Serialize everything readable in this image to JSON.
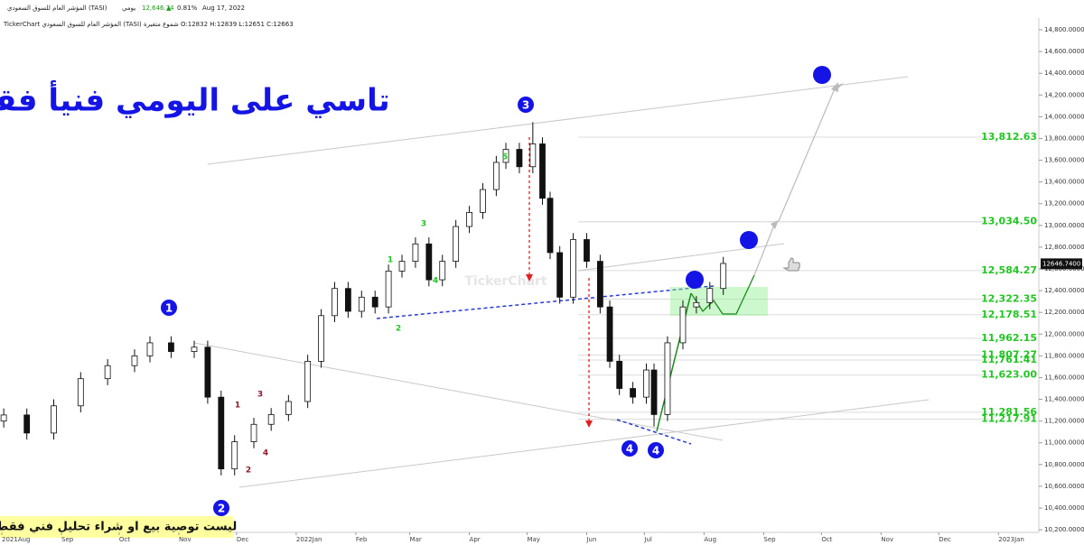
{
  "header": {
    "instrument": "المؤشر العام للسوق السعودي (TASI)",
    "interval": "يومي",
    "price": "12,646.74",
    "direction": "▲",
    "change": "0.81%",
    "date": "Aug 17, 2022",
    "info_line": "TickerChart المؤشر العام للسوق السعودي (TASI) شموع متغيرة O:12832 H:12839 L:12651 C:12663"
  },
  "chart_data": {
    "type": "candlestick",
    "title": "تاسي على اليومي فنيأ فقط",
    "watermark": "TickerChart",
    "x": [
      1,
      13,
      27,
      41,
      55,
      69,
      77,
      88,
      100,
      107,
      114,
      121,
      131,
      140,
      149,
      159,
      166,
      173,
      180,
      187,
      194,
      201,
      208,
      215,
      222,
      229,
      236,
      243,
      250,
      257,
      262,
      269,
      276,
      281,
      285,
      290,
      297,
      304,
      311,
      316,
      321,
      328,
      335,
      339,
      346,
      354,
      361,
      368,
      375
    ],
    "open": [
      11200,
      11256,
      11090,
      11340,
      11590,
      11710,
      11800,
      11920,
      11840,
      11880,
      11420,
      10760,
      11010,
      11170,
      11260,
      11380,
      11750,
      12170,
      12420,
      12210,
      12340,
      12250,
      12580,
      12670,
      12830,
      12500,
      12670,
      12990,
      13120,
      13330,
      13580,
      13700,
      13540,
      13750,
      13250,
      12750,
      12340,
      12870,
      12670,
      12250,
      11750,
      11500,
      11420,
      11670,
      11260,
      11920,
      12250,
      12290,
      12420
    ],
    "high": [
      11316,
      11316,
      11400,
      11650,
      11770,
      11860,
      11980,
      11980,
      11940,
      11940,
      11480,
      11070,
      11230,
      11320,
      11440,
      11810,
      12230,
      12480,
      12480,
      12400,
      12400,
      12640,
      12730,
      12890,
      12890,
      12730,
      13050,
      13180,
      13390,
      13640,
      13760,
      13760,
      13950,
      13810,
      13310,
      12810,
      12930,
      12930,
      12730,
      12310,
      11810,
      11560,
      11730,
      11730,
      11980,
      12310,
      12350,
      12480,
      12710
    ],
    "low": [
      11140,
      11030,
      11030,
      11280,
      11530,
      11650,
      11740,
      11780,
      11780,
      11360,
      10700,
      10700,
      10950,
      11110,
      11200,
      11320,
      11690,
      12110,
      12150,
      12150,
      12190,
      12190,
      12520,
      12610,
      12440,
      12440,
      12610,
      12930,
      13060,
      13270,
      13520,
      13480,
      13480,
      13190,
      12690,
      12280,
      12280,
      12610,
      12190,
      11690,
      11440,
      11360,
      11360,
      11150,
      11200,
      11860,
      12190,
      12230,
      12360
    ],
    "close": [
      11256,
      11090,
      11340,
      11590,
      11710,
      11800,
      11920,
      11840,
      11880,
      11420,
      10760,
      11010,
      11170,
      11260,
      11380,
      11750,
      12170,
      12420,
      12210,
      12340,
      12250,
      12580,
      12670,
      12830,
      12500,
      12670,
      12990,
      13120,
      13330,
      13580,
      13700,
      13540,
      13750,
      13250,
      12750,
      12340,
      12870,
      12670,
      12250,
      11750,
      11500,
      11420,
      11670,
      11260,
      11920,
      12250,
      12290,
      12420,
      12650
    ],
    "up_color": "#ffffff",
    "down_color": "#111111",
    "xlim": [
      0,
      539
    ],
    "xticks": [
      {
        "value": 0,
        "label": "2021Aug"
      },
      {
        "value": 31,
        "label": "Sep"
      },
      {
        "value": 61,
        "label": "Oct"
      },
      {
        "value": 92,
        "label": "Nov"
      },
      {
        "value": 122,
        "label": "Dec"
      },
      {
        "value": 153,
        "label": "2022Jan"
      },
      {
        "value": 184,
        "label": "Feb"
      },
      {
        "value": 212,
        "label": "Mar"
      },
      {
        "value": 243,
        "label": "Apr"
      },
      {
        "value": 273,
        "label": "May"
      },
      {
        "value": 304,
        "label": "Jun"
      },
      {
        "value": 334,
        "label": "Jul"
      },
      {
        "value": 365,
        "label": "Aug"
      },
      {
        "value": 396,
        "label": "Sep"
      },
      {
        "value": 426,
        "label": "Oct"
      },
      {
        "value": 457,
        "label": "Nov"
      },
      {
        "value": 487,
        "label": "Dec"
      },
      {
        "value": 518,
        "label": "2023Jan"
      }
    ],
    "ylim": [
      10176,
      14908
    ],
    "yticks": [
      {
        "value": 10200,
        "label": "10,200.0000"
      },
      {
        "value": 10400,
        "label": "10,400.0000"
      },
      {
        "value": 10600,
        "label": "10,600.0000"
      },
      {
        "value": 10800,
        "label": "10,800.0000"
      },
      {
        "value": 11000,
        "label": "11,000.0000"
      },
      {
        "value": 11200,
        "label": "11,200.0000"
      },
      {
        "value": 11400,
        "label": "11,400.0000"
      },
      {
        "value": 11600,
        "label": "11,600.0000"
      },
      {
        "value": 11800,
        "label": "11,800.0000"
      },
      {
        "value": 12000,
        "label": "12,000.0000"
      },
      {
        "value": 12200,
        "label": "12,200.0000"
      },
      {
        "value": 12400,
        "label": "12,400.0000"
      },
      {
        "value": 12600,
        "label": "12,600.0000"
      },
      {
        "value": 12800,
        "label": "12,800.0000"
      },
      {
        "value": 13000,
        "label": "13,000.0000"
      },
      {
        "value": 13200,
        "label": "13,200.0000"
      },
      {
        "value": 13400,
        "label": "13,400.0000"
      },
      {
        "value": 13600,
        "label": "13,600.0000"
      },
      {
        "value": 13800,
        "label": "13,800.0000"
      },
      {
        "value": 14000,
        "label": "14,000.0000"
      },
      {
        "value": 14200,
        "label": "14,200.0000"
      },
      {
        "value": 14400,
        "label": "14,400.0000"
      },
      {
        "value": 14600,
        "label": "14,600.0000"
      },
      {
        "value": 14800,
        "label": "14,800.0000"
      }
    ],
    "levels": [
      {
        "value": 13812.63,
        "label": "13,812.63"
      },
      {
        "value": 13034.5,
        "label": "13,034.50"
      },
      {
        "value": 12584.27,
        "label": "12,584.27"
      },
      {
        "value": 12322.35,
        "label": "12,322.35"
      },
      {
        "value": 12178.51,
        "label": "12,178.51"
      },
      {
        "value": 11962.15,
        "label": "11,962.15"
      },
      {
        "value": 11807.27,
        "label": "11,807.27"
      },
      {
        "value": 11761.41,
        "label": "11,761.41"
      },
      {
        "value": 11623.0,
        "label": "11,623.00"
      },
      {
        "value": 11281.56,
        "label": "11,281.56"
      },
      {
        "value": 11217.91,
        "label": "11,217.91"
      }
    ],
    "level_color": "#22c522",
    "current_price": {
      "value": 12646.74,
      "label": "12646.7400"
    },
    "waves_major": [
      "1",
      "2",
      "3",
      "4",
      "4"
    ],
    "waves_green": [
      "1",
      "2",
      "3",
      "4",
      "5"
    ],
    "waves_red": [
      "1",
      "2",
      "3",
      "4"
    ]
  },
  "disclaimer": "ليست توصية بيع او شراء تحليل فني فقط"
}
